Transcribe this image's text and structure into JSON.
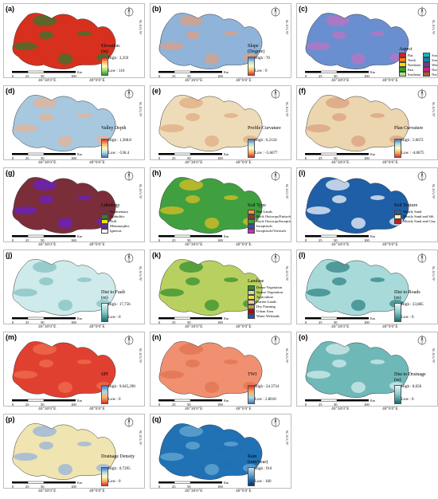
{
  "coordinates": {
    "lon1": "46°30'0\"E",
    "lon2": "48°0'0\"E",
    "lat1": "35°0'0\"N",
    "lat2": "34°0'0\"N"
  },
  "scale_labels": [
    "0",
    "25",
    "50",
    "100",
    "Km"
  ],
  "panels": [
    {
      "id": "a",
      "label": "(a)",
      "title": "Elevation\n(m)",
      "high": "High : 3,359",
      "low": "Low : 116",
      "ramp": [
        "#1a9641",
        "#a6d96a",
        "#ffffbf",
        "#fdae61",
        "#d7191c"
      ],
      "fill": "#d7301f",
      "fill2": "#2c7a2c"
    },
    {
      "id": "b",
      "label": "(b)",
      "title": "Slope\n(Degree)",
      "high": "High : 70",
      "low": "Low : 0",
      "ramp": [
        "#d73027",
        "#fdae61",
        "#ffffbf",
        "#abd9e9",
        "#4575b4"
      ],
      "fill": "#8fb3d9",
      "fill2": "#e0a080"
    },
    {
      "id": "c",
      "label": "(c)",
      "title": "Aspect",
      "categories": [
        [
          "Flat",
          "#e31a1c"
        ],
        [
          "South",
          "#00c0c0"
        ],
        [
          "North",
          "#ff7f00"
        ],
        [
          "Southwest",
          "#1f78b4"
        ],
        [
          "Northeast",
          "#ffd700"
        ],
        [
          "West",
          "#6a3d9a"
        ],
        [
          "East",
          "#33a02c"
        ],
        [
          "Northwest",
          "#d01c8b"
        ],
        [
          "Southeast",
          "#b2df8a"
        ],
        [
          "North",
          "#b15928"
        ]
      ],
      "fill": "#6a8fd0",
      "fill2": "#c070c0"
    },
    {
      "id": "d",
      "label": "(d)",
      "title": "Valley Depth",
      "high": "High : 1,368.8",
      "low": "Low : -536.4",
      "ramp": [
        "#4575b4",
        "#abd9e9",
        "#ffffbf",
        "#fdae61",
        "#d73027"
      ],
      "fill": "#a8c8e0",
      "fill2": "#e8b090"
    },
    {
      "id": "e",
      "label": "(e)",
      "title": "Profile Curvature",
      "high": "High : 6.2124",
      "low": "Low : -5.6677",
      "ramp": [
        "#d73027",
        "#fdae61",
        "#ffffbf",
        "#abd9e9",
        "#4575b4"
      ],
      "fill": "#eedcb8",
      "fill2": "#e0a880"
    },
    {
      "id": "f",
      "label": "(f)",
      "title": "Plan Curvature",
      "high": "High : 5.0672",
      "low": "Low : -4.0675",
      "ramp": [
        "#d73027",
        "#fdae61",
        "#ffffbf",
        "#abd9e9",
        "#4575b4"
      ],
      "fill": "#ecd6b0",
      "fill2": "#dc9c7c"
    },
    {
      "id": "g",
      "label": "(g)",
      "title": "Lithology",
      "categories": [
        [
          "Sedimentary",
          "#7b2d3a"
        ],
        [
          "Ophiolitic",
          "#3b7d2b"
        ],
        [
          "Null",
          "#e6e600"
        ],
        [
          "Metamorphic",
          "#6a1fd0"
        ],
        [
          "Igneous",
          "#ffffff"
        ]
      ],
      "fill": "#7b2d3a",
      "fill2": "#6a1fd0"
    },
    {
      "id": "h",
      "label": "(h)",
      "title": "Soil Type",
      "categories": [
        [
          "Bad Lands",
          "#e6a020"
        ],
        [
          "Rock Outcrops/Entisols",
          "#a03030"
        ],
        [
          "Rock Outcrops/Inceptisols",
          "#40a040"
        ],
        [
          "Inceptisols",
          "#3050c0"
        ],
        [
          "Inceptisols/Vertisols",
          "#c030c0"
        ]
      ],
      "fill": "#40a040",
      "fill2": "#e6c020"
    },
    {
      "id": "i",
      "label": "(i)",
      "title": "Soil Texture",
      "categories": [
        [
          "Mostly Sand",
          "#1f5fa8"
        ],
        [
          "Mostly Sand and Silt",
          "#fff2b0"
        ],
        [
          "Mostly Sand and Clay",
          "#c02020"
        ]
      ],
      "fill": "#1f5fa8",
      "fill2": "#ffffff"
    },
    {
      "id": "j",
      "label": "(j)",
      "title": "Dist to Fault\n(m)",
      "high": "High : 17,756",
      "low": "Low : 0",
      "ramp": [
        "#1a6a6a",
        "#7fc9c9",
        "#e8f6f6"
      ],
      "fill": "#cfeaea",
      "fill2": "#7fbfbf"
    },
    {
      "id": "k",
      "label": "(k)",
      "title": "Landuse",
      "categories": [
        [
          "Dense Vegetation",
          "#2e8b2e"
        ],
        [
          "Sparse Vegetation",
          "#c8e68c"
        ],
        [
          "Agriculture",
          "#e6e640"
        ],
        [
          "Barren Lands",
          "#f0c8a0"
        ],
        [
          "Dry Farming",
          "#c89650"
        ],
        [
          "Urban Area",
          "#a01010"
        ],
        [
          "Water Wetlands",
          "#2050c8"
        ]
      ],
      "fill": "#b8d060",
      "fill2": "#2e8b2e"
    },
    {
      "id": "l",
      "label": "(l)",
      "title": "Dist to Roads\n(m)",
      "high": "High : 23,885",
      "low": "Low : 0",
      "ramp": [
        "#1a6a6a",
        "#7fc9c9",
        "#e8f6f6"
      ],
      "fill": "#a8dada",
      "fill2": "#2a7f7f"
    },
    {
      "id": "m",
      "label": "(m)",
      "title": "SPI",
      "high": "High : 9,645,290",
      "low": "Low : 0",
      "ramp": [
        "#d7301f",
        "#fdae61",
        "#abd9e9",
        "#4575b4"
      ],
      "fill": "#e04030",
      "fill2": "#f07050"
    },
    {
      "id": "n",
      "label": "(n)",
      "title": "TWI",
      "high": "High : 24.3734",
      "low": "Low : 2.8010",
      "ramp": [
        "#4575b4",
        "#abd9e9",
        "#fdae61",
        "#d7301f"
      ],
      "fill": "#f09070",
      "fill2": "#e07050"
    },
    {
      "id": "o",
      "label": "(o)",
      "title": "Dist to Drainage\n(m)",
      "high": "High : 8,656",
      "low": "Low : 0",
      "ramp": [
        "#1a6a6a",
        "#7fc9c9",
        "#e8f6f6"
      ],
      "fill": "#6fb8b8",
      "fill2": "#d8f0f0"
    },
    {
      "id": "p",
      "label": "(p)",
      "title": "Drainage Density",
      "high": "High : 0.7295",
      "low": "Low : 0",
      "ramp": [
        "#d73027",
        "#fdae61",
        "#ffffbf",
        "#abd9e9",
        "#4575b4"
      ],
      "fill": "#f0e4b0",
      "fill2": "#8fb0e0"
    },
    {
      "id": "q",
      "label": "(q)",
      "title": "Rain\n(mm/year)",
      "high": "High : 910",
      "low": "Low : 160",
      "ramp": [
        "#08306b",
        "#2171b5",
        "#6baed6",
        "#c6dbef"
      ],
      "fill": "#2171b5",
      "fill2": "#6baed6"
    }
  ]
}
